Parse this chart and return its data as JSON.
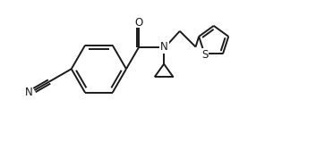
{
  "background_color": "#ffffff",
  "line_color": "#1a1a1a",
  "line_width": 1.4,
  "font_size": 8.5,
  "figsize": [
    3.53,
    1.58
  ],
  "dpi": 100,
  "xlim": [
    0,
    10
  ],
  "ylim": [
    0,
    4.5
  ]
}
